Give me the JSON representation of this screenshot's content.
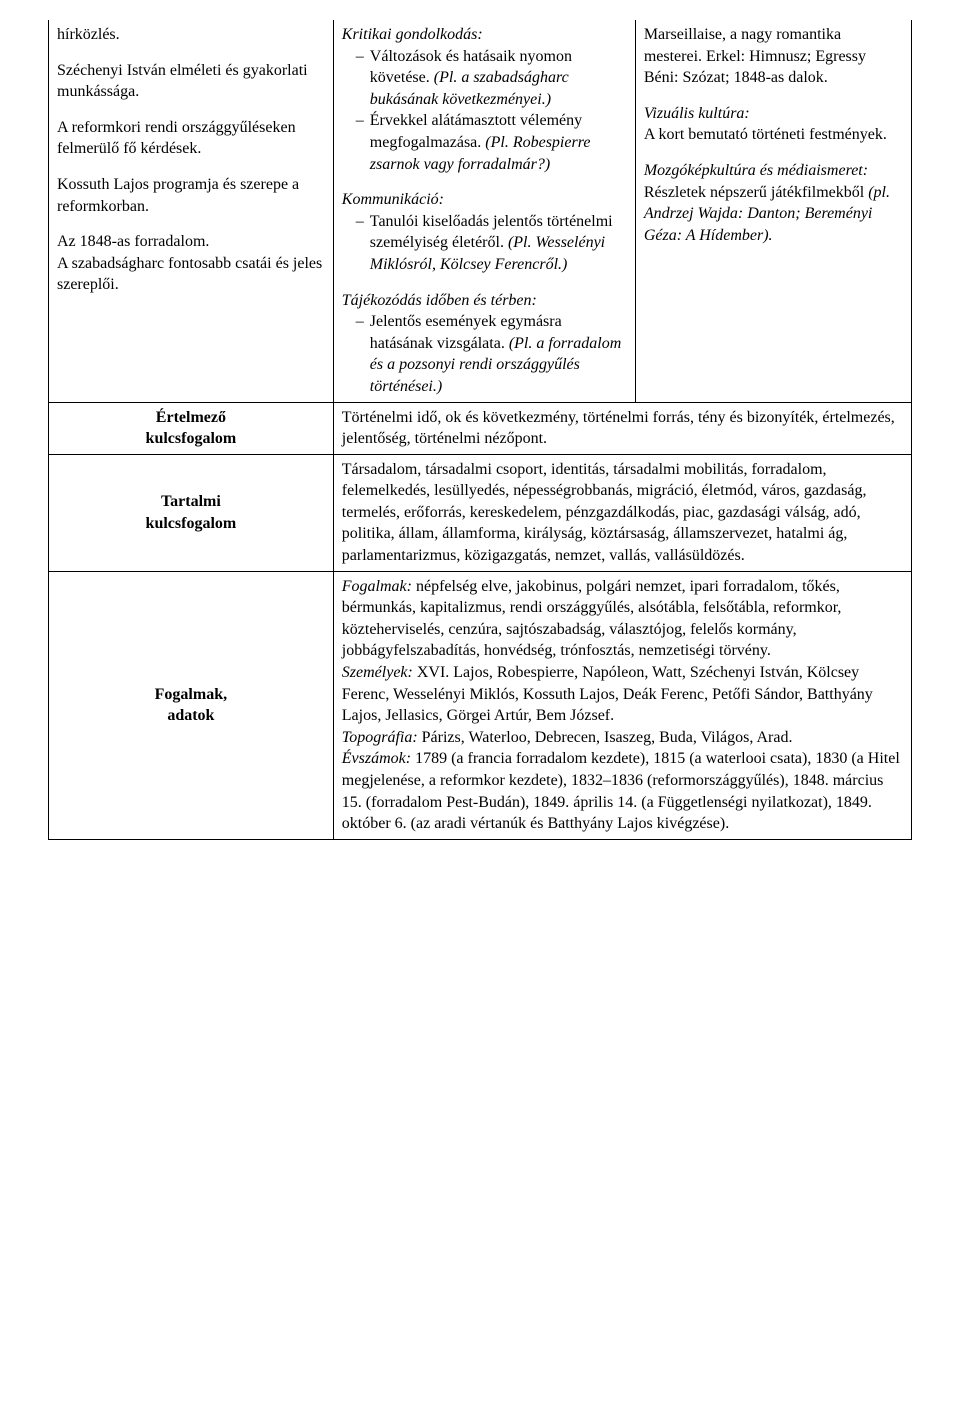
{
  "col1": {
    "p1": "hírközlés.",
    "p2": "Széchenyi István elméleti és gyakorlati munkássága.",
    "p3": "A reformkori rendi országgyűléseken felmerülő fő kérdések.",
    "p4": "Kossuth Lajos programja és szerepe a reformkorban.",
    "p5a": "Az 1848-as forradalom.",
    "p5b": "A szabadságharc fontosabb csatái és jeles szereplői."
  },
  "col2": {
    "h1": "Kritikai gondolkodás:",
    "li1a": "Változások és hatásaik nyomon követése. ",
    "li1b": "(Pl. a szabadságharc bukásának következményei.)",
    "li2a": "Érvekkel alátámasztott vélemény megfogalmazása. ",
    "li2b": "(Pl. Robespierre zsarnok vagy forradalmár?)",
    "h2": "Kommunikáció:",
    "li3a": "Tanulói kiselőadás jelentős történelmi személyiség életéről. ",
    "li3b": "(Pl. Wesselényi Miklósról, Kölcsey Ferencről.)",
    "h3": "Tájékozódás időben és térben:",
    "li4a": "Jelentős események egymásra hatásának vizsgálata. ",
    "li4b": "(Pl. a forradalom és a pozsonyi rendi országgyűlés történései.)"
  },
  "col3": {
    "p1": "Marseillaise, a nagy romantika mesterei. Erkel: Himnusz; Egressy Béni: Szózat; 1848-as dalok.",
    "h2": "Vizuális kultúra:",
    "p2": "A kort bemutató történeti festmények.",
    "h3": "Mozgóképkultúra és médiaismeret:",
    "p3a": "Részletek népszerű játékfilmekből ",
    "p3b": "(pl. Andrzej Wajda: Danton; Bereményi Géza: A Hídember)."
  },
  "row2": {
    "label1": "Értelmező",
    "label2": "kulcsfogalom",
    "text": "Történelmi idő, ok és következmény, történelmi forrás, tény és bizonyíték, értelmezés, jelentőség, történelmi nézőpont."
  },
  "row3": {
    "label1": "Tartalmi",
    "label2": "kulcsfogalom",
    "text": "Társadalom, társadalmi csoport, identitás, társadalmi mobilitás, forradalom, felemelkedés, lesüllyedés, népességrobbanás, migráció, életmód, város, gazdaság, termelés, erőforrás, kereskedelem, pénzgazdálkodás, piac, gazdasági válság, adó, politika, állam, államforma, királyság, köztársaság, államszervezet, hatalmi ág, parlamentarizmus, közigazgatás, nemzet, vallás, vallásüldözés."
  },
  "row4": {
    "label1": "Fogalmak,",
    "label2": "adatok",
    "l1": "Fogalmak:",
    "t1": " népfelség elve, jakobinus, polgári nemzet, ipari forradalom, tőkés, bérmunkás, kapitalizmus, rendi országgyűlés, alsótábla, felsőtábla, reformkor, közteherviselés, cenzúra, sajtószabadság, választójog, felelős kormány, jobbágyfelszabadítás, honvédség, trónfosztás, nemzetiségi törvény.",
    "l2": "Személyek:",
    "t2": " XVI. Lajos, Robespierre, Napóleon, Watt, Széchenyi István, Kölcsey Ferenc, Wesselényi Miklós, Kossuth Lajos, Deák Ferenc, Petőfi Sándor, Batthyány Lajos, Jellasics, Görgei Artúr, Bem József.",
    "l3": "Topográfia:",
    "t3": " Párizs, Waterloo, Debrecen, Isaszeg, Buda, Világos, Arad.",
    "l4": "Évszámok:",
    "t4": " 1789 (a francia forradalom kezdete), 1815 (a waterlooi csata), 1830 (a Hitel megjelenése, a reformkor kezdete), 1832–1836 (reformországgyűlés), 1848. március 15. (forradalom Pest-Budán), 1849. április 14. (a Függetlenségi nyilatkozat), 1849. október 6. (az aradi vértanúk és Batthyány Lajos kivégzése)."
  }
}
